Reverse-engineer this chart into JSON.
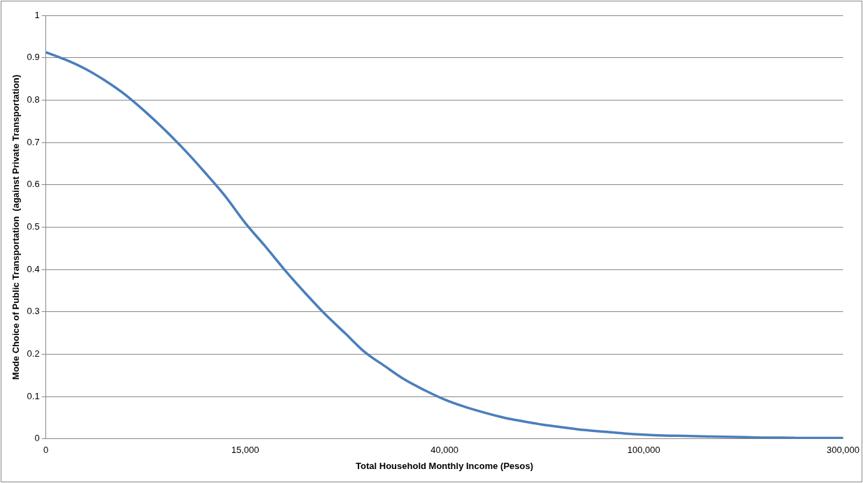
{
  "chart_data": {
    "type": "line",
    "xlabel": "Total Household Monthly Income (Pesos)",
    "ylabel": "Mode Choice of Public Transportation  (against Private Transportation)",
    "categories": [
      "0",
      null,
      null,
      null,
      null,
      null,
      null,
      null,
      null,
      null,
      "15,000",
      null,
      null,
      null,
      null,
      null,
      null,
      null,
      null,
      null,
      "40,000",
      null,
      null,
      null,
      null,
      null,
      null,
      null,
      null,
      null,
      "100,000",
      null,
      null,
      null,
      null,
      null,
      null,
      null,
      null,
      null,
      "300,000"
    ],
    "series": [
      {
        "color": "#4a7ebb",
        "values": [
          0.913,
          0.895,
          0.873,
          0.845,
          0.812,
          0.772,
          0.728,
          0.68,
          0.628,
          0.573,
          0.51,
          0.455,
          0.398,
          0.345,
          0.295,
          0.25,
          0.205,
          0.172,
          0.14,
          0.115,
          0.093,
          0.076,
          0.062,
          0.05,
          0.041,
          0.033,
          0.027,
          0.021,
          0.017,
          0.013,
          0.01,
          0.008,
          0.007,
          0.006,
          0.005,
          0.004,
          0.003,
          0.003,
          0.002,
          0.002,
          0.002
        ]
      }
    ],
    "ylim": [
      0,
      1
    ],
    "yticks": [
      0,
      0.1,
      0.2,
      0.3,
      0.4,
      0.5,
      0.6,
      0.7,
      0.8,
      0.9,
      1
    ],
    "grid": "y",
    "legend": false,
    "marker": "none",
    "line_style": "solid"
  }
}
